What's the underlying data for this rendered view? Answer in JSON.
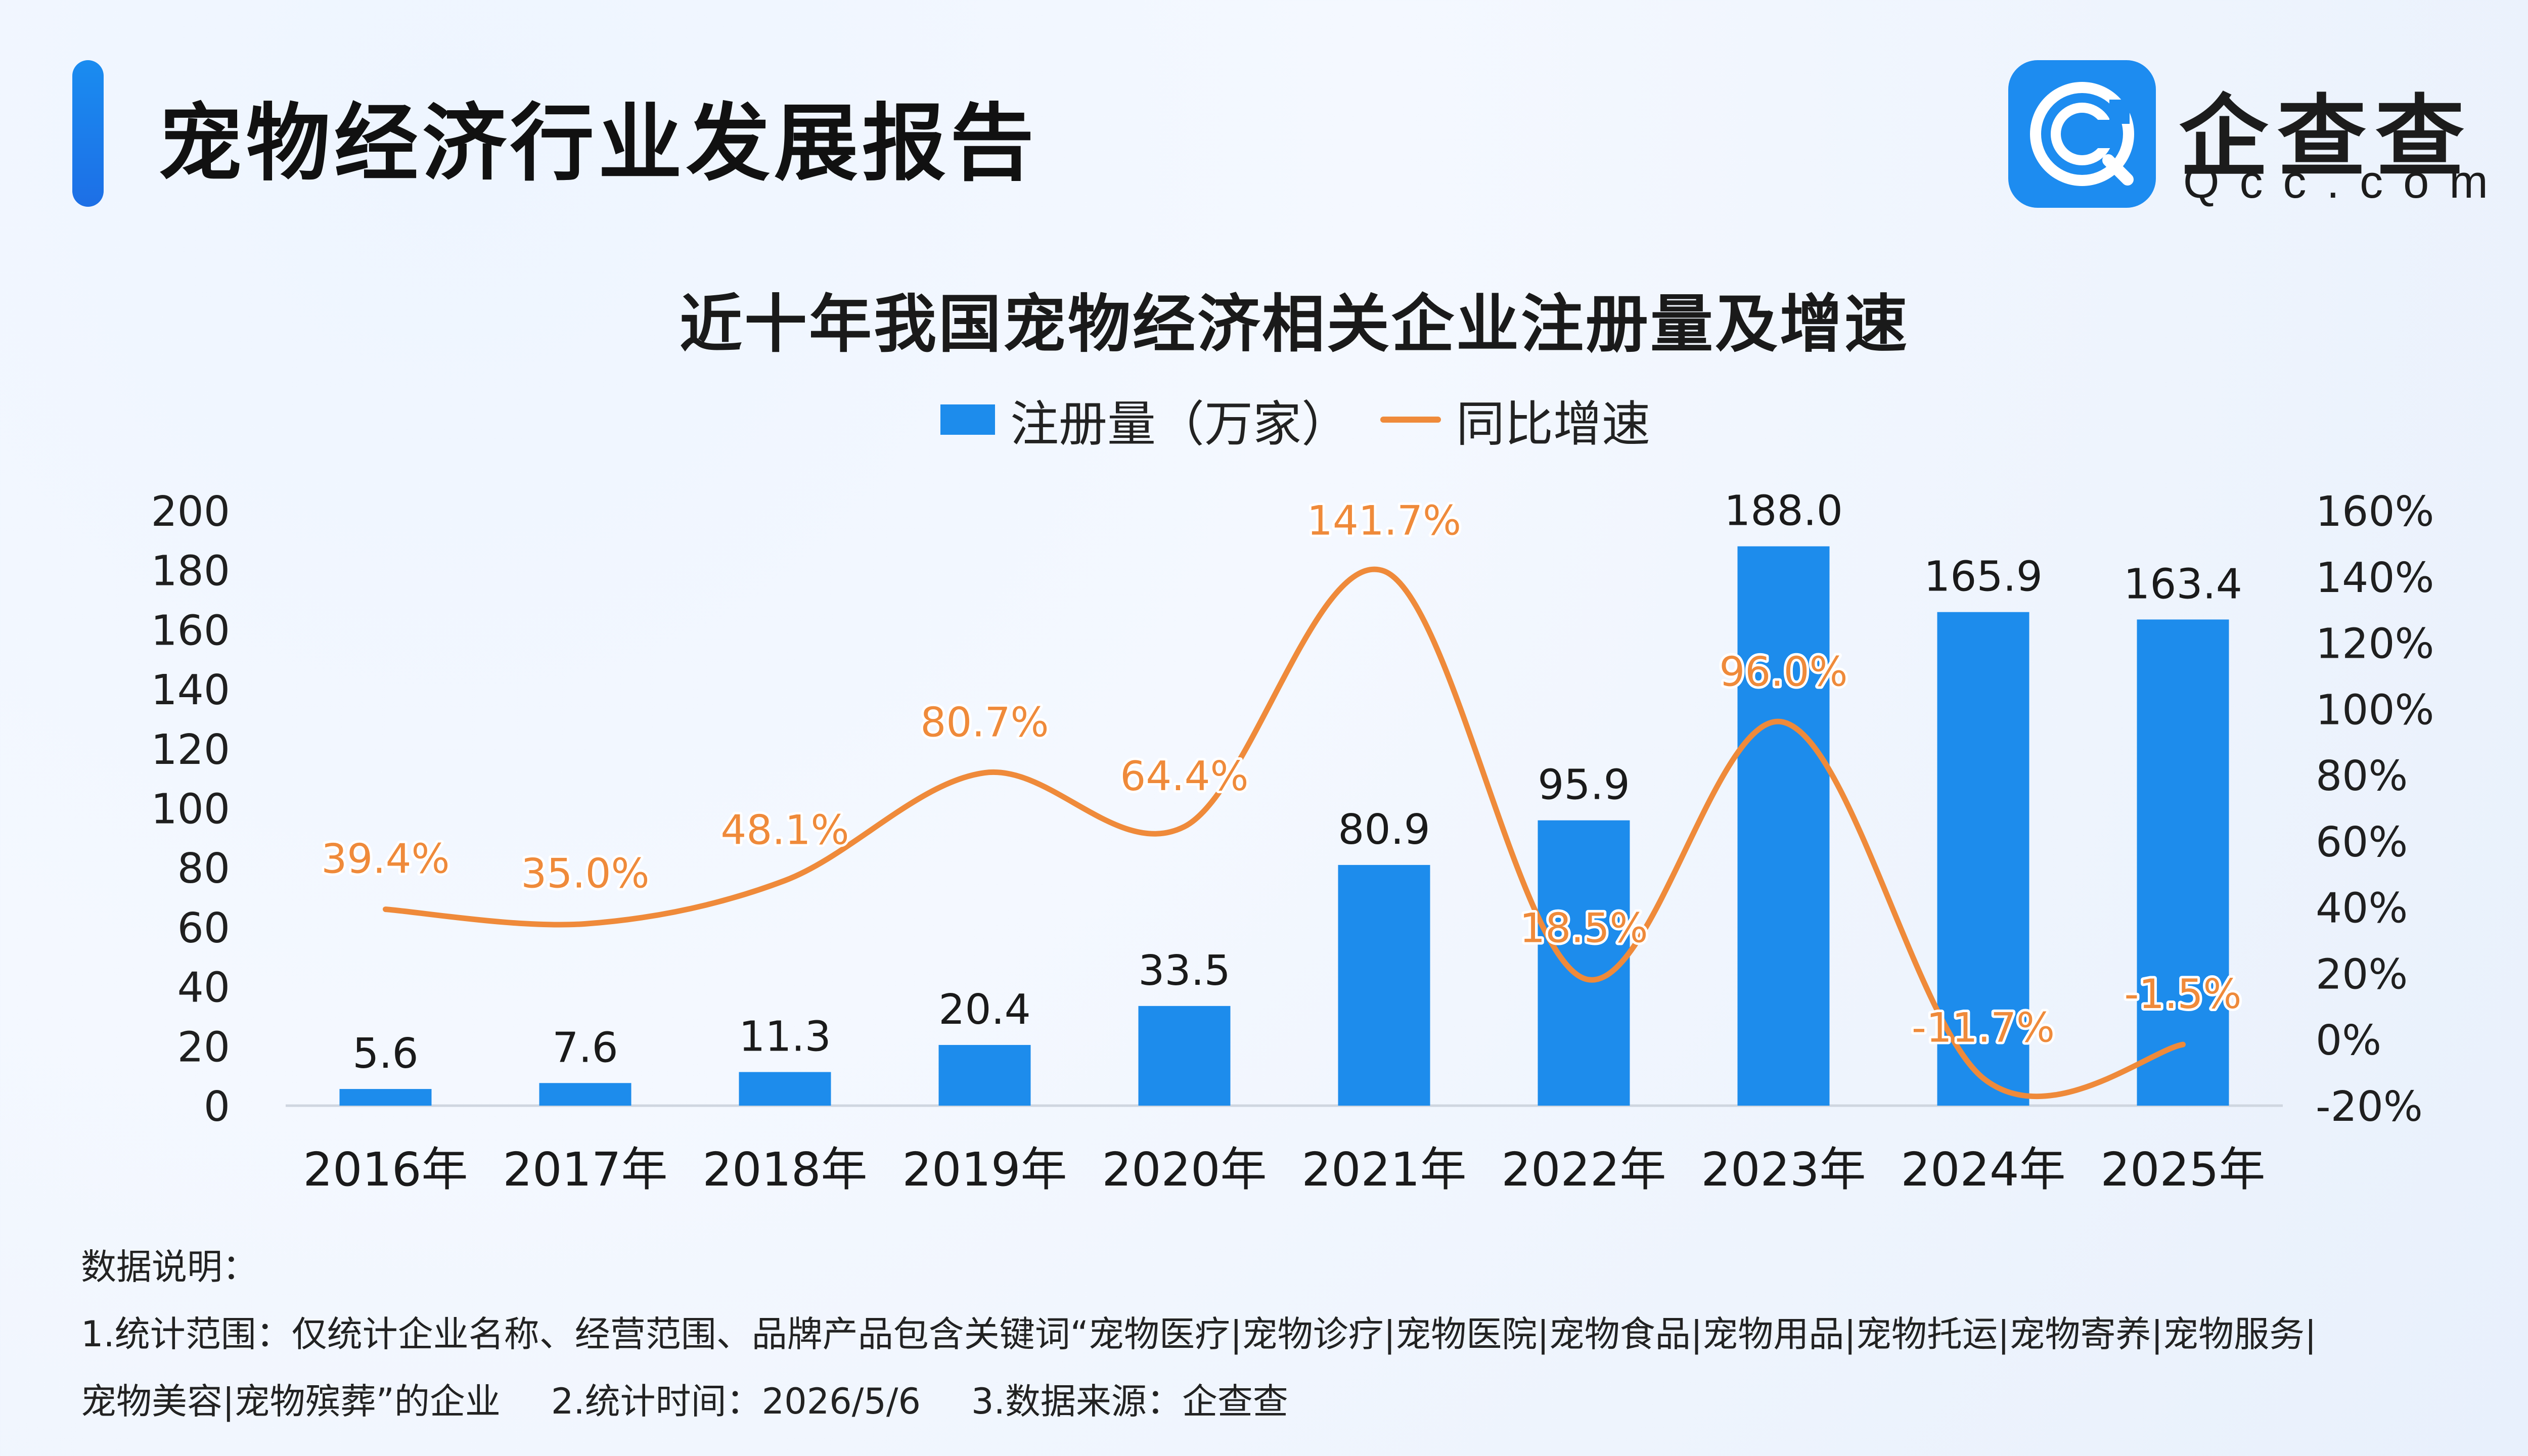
{
  "header": {
    "title": "宠物经济行业发展报告",
    "logo_name": "企查查",
    "logo_domain": "Qcc.com",
    "logo_icon": "qcc-search-icon"
  },
  "colors": {
    "bar": "#1d8cec",
    "line": "#ef8a3a",
    "accent": "#1d8cf0"
  },
  "chart_data": {
    "type": "bar",
    "title": "近十年我国宠物经济相关企业注册量及增速",
    "legend": [
      "注册量（万家）",
      "同比增速"
    ],
    "legend_position": "top",
    "categories": [
      "2016年",
      "2017年",
      "2018年",
      "2019年",
      "2020年",
      "2021年",
      "2022年",
      "2023年",
      "2024年",
      "2025年"
    ],
    "series": [
      {
        "name": "注册量（万家）",
        "type": "bar",
        "axis": "left",
        "values": [
          5.6,
          7.6,
          11.3,
          20.4,
          33.5,
          80.9,
          95.9,
          188.0,
          165.9,
          163.4
        ],
        "labels": [
          "5.6",
          "7.6",
          "11.3",
          "20.4",
          "33.5",
          "80.9",
          "95.9",
          "188.0",
          "165.9",
          "163.4"
        ]
      },
      {
        "name": "同比增速",
        "type": "line",
        "axis": "right",
        "smooth": true,
        "values": [
          39.4,
          35.0,
          48.1,
          80.7,
          64.4,
          141.7,
          18.5,
          96.0,
          -11.7,
          -1.5
        ],
        "labels": [
          "39.4%",
          "35.0%",
          "48.1%",
          "80.7%",
          "64.4%",
          "141.7%",
          "18.5%",
          "96.0%",
          "-11.7%",
          "-1.5%"
        ]
      }
    ],
    "y_left": {
      "range": [
        0,
        200
      ],
      "ticks": [
        0,
        20,
        40,
        60,
        80,
        100,
        120,
        140,
        160,
        180,
        200
      ],
      "tick_labels": [
        "0",
        "20",
        "40",
        "60",
        "80",
        "100",
        "120",
        "140",
        "160",
        "180",
        "200"
      ]
    },
    "y_right": {
      "range": [
        -20,
        160
      ],
      "ticks": [
        -20,
        0,
        20,
        40,
        60,
        80,
        100,
        120,
        140,
        160
      ],
      "tick_labels": [
        "-20%",
        "0%",
        "20%",
        "40%",
        "60%",
        "80%",
        "100%",
        "120%",
        "140%",
        "160%"
      ]
    },
    "grid": false
  },
  "notes": {
    "heading": "数据说明：",
    "line1": "1.统计范围：仅统计企业名称、经营范围、品牌产品包含关键词“宠物医疗|宠物诊疗|宠物医院|宠物食品|宠物用品|宠物托运|宠物寄养|宠物服务|",
    "line2_part1": "宠物美容|宠物殡葬”的企业",
    "line2_part2": "2.统计时间：2026/5/6",
    "line2_part3": "3.数据来源：企查查"
  }
}
